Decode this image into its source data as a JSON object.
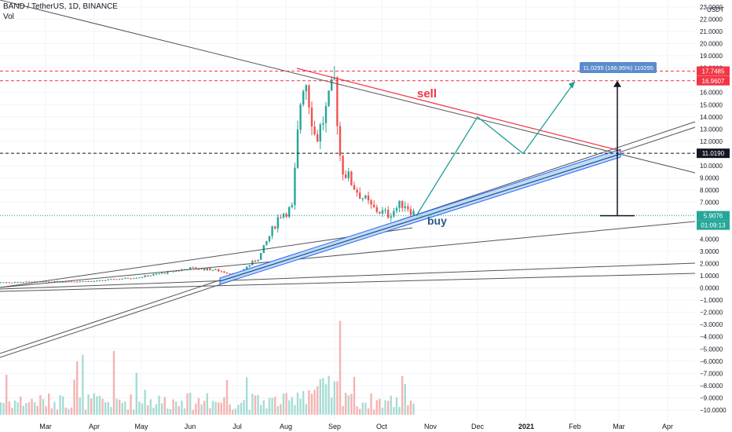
{
  "header": {
    "symbol": "BAND / TetherUS, 1D, BINANCE",
    "volume_label": "Vol",
    "currency": "USDT"
  },
  "chart_data": {
    "type": "candlestick",
    "symbol": "BAND / TetherUS",
    "interval": "1D",
    "exchange": "BINANCE",
    "y_ticks": [
      23,
      22,
      21,
      20,
      19,
      18,
      17,
      16,
      15,
      14,
      13,
      12,
      11,
      10,
      9,
      8,
      7,
      6,
      5,
      4,
      3,
      2,
      1,
      0,
      -1,
      -2,
      -3,
      -4,
      -5,
      -6,
      -7,
      -8,
      -9,
      -10
    ],
    "y_tick_labels": [
      "23.0000",
      "22.0000",
      "21.0000",
      "20.0000",
      "19.0000",
      "18.0000",
      "17.0000",
      "16.0000",
      "15.0000",
      "14.0000",
      "13.0000",
      "12.0000",
      "11.0000",
      "10.0000",
      "9.0000",
      "8.0000",
      "7.0000",
      "6.0000",
      "5.0000",
      "4.0000",
      "3.0000",
      "2.0000",
      "1.0000",
      "0.0000",
      "−1.0000",
      "−2.0000",
      "−3.0000",
      "−4.0000",
      "−5.0000",
      "−6.0000",
      "−7.0000",
      "−8.0000",
      "−9.0000",
      "−10.0000"
    ],
    "x_ticks": [
      "Mar",
      "Apr",
      "May",
      "Jun",
      "Jul",
      "Aug",
      "Sep",
      "Oct",
      "Nov",
      "Dec",
      "2021",
      "Feb",
      "Mar",
      "Apr"
    ],
    "price_tags": [
      {
        "value": 17.7485,
        "label": "17.7485",
        "color": "#f23645"
      },
      {
        "value": 16.9607,
        "label": "16.9607",
        "color": "#f23645"
      },
      {
        "value": 11.019,
        "label": "11.0190",
        "color": "#131722"
      },
      {
        "value": 5.9076,
        "label": "5.9076",
        "color": "#26a69a"
      }
    ],
    "countdown": "01:09:13",
    "measure_label": "11.0295 (186.95%) 110295",
    "annotations": [
      "sell",
      "buy"
    ],
    "price_path": [
      {
        "date": "2020-02-01",
        "price": 0.45
      },
      {
        "date": "2020-03-01",
        "price": 0.5
      },
      {
        "date": "2020-04-01",
        "price": 0.55
      },
      {
        "date": "2020-05-01",
        "price": 0.9
      },
      {
        "date": "2020-06-01",
        "price": 1.6
      },
      {
        "date": "2020-06-15",
        "price": 1.5
      },
      {
        "date": "2020-07-01",
        "price": 1.1
      },
      {
        "date": "2020-07-15",
        "price": 2.5
      },
      {
        "date": "2020-07-28",
        "price": 6.0
      },
      {
        "date": "2020-08-05",
        "price": 6.5
      },
      {
        "date": "2020-08-10",
        "price": 15.0
      },
      {
        "date": "2020-08-13",
        "price": 17.7
      },
      {
        "date": "2020-08-20",
        "price": 12.0
      },
      {
        "date": "2020-08-28",
        "price": 15.0
      },
      {
        "date": "2020-09-01",
        "price": 16.9
      },
      {
        "date": "2020-09-05",
        "price": 10.0
      },
      {
        "date": "2020-09-15",
        "price": 8.0
      },
      {
        "date": "2020-09-25",
        "price": 6.5
      },
      {
        "date": "2020-10-05",
        "price": 6.0
      },
      {
        "date": "2020-10-15",
        "price": 7.0
      },
      {
        "date": "2020-10-23",
        "price": 5.9
      }
    ],
    "projection_path": [
      {
        "date": "2020-10-23",
        "price": 5.9
      },
      {
        "date": "2020-12-01",
        "price": 14.0
      },
      {
        "date": "2020-12-30",
        "price": 11.0
      },
      {
        "date": "2021-02-01",
        "price": 16.9
      }
    ]
  }
}
